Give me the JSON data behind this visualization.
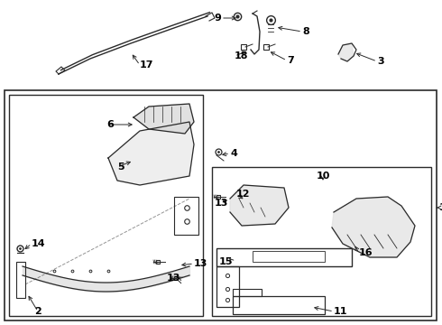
{
  "bg_color": "#ffffff",
  "line_color": "#2a2a2a",
  "text_color": "#000000",
  "fig_w": 4.9,
  "fig_h": 3.6,
  "dpi": 100
}
